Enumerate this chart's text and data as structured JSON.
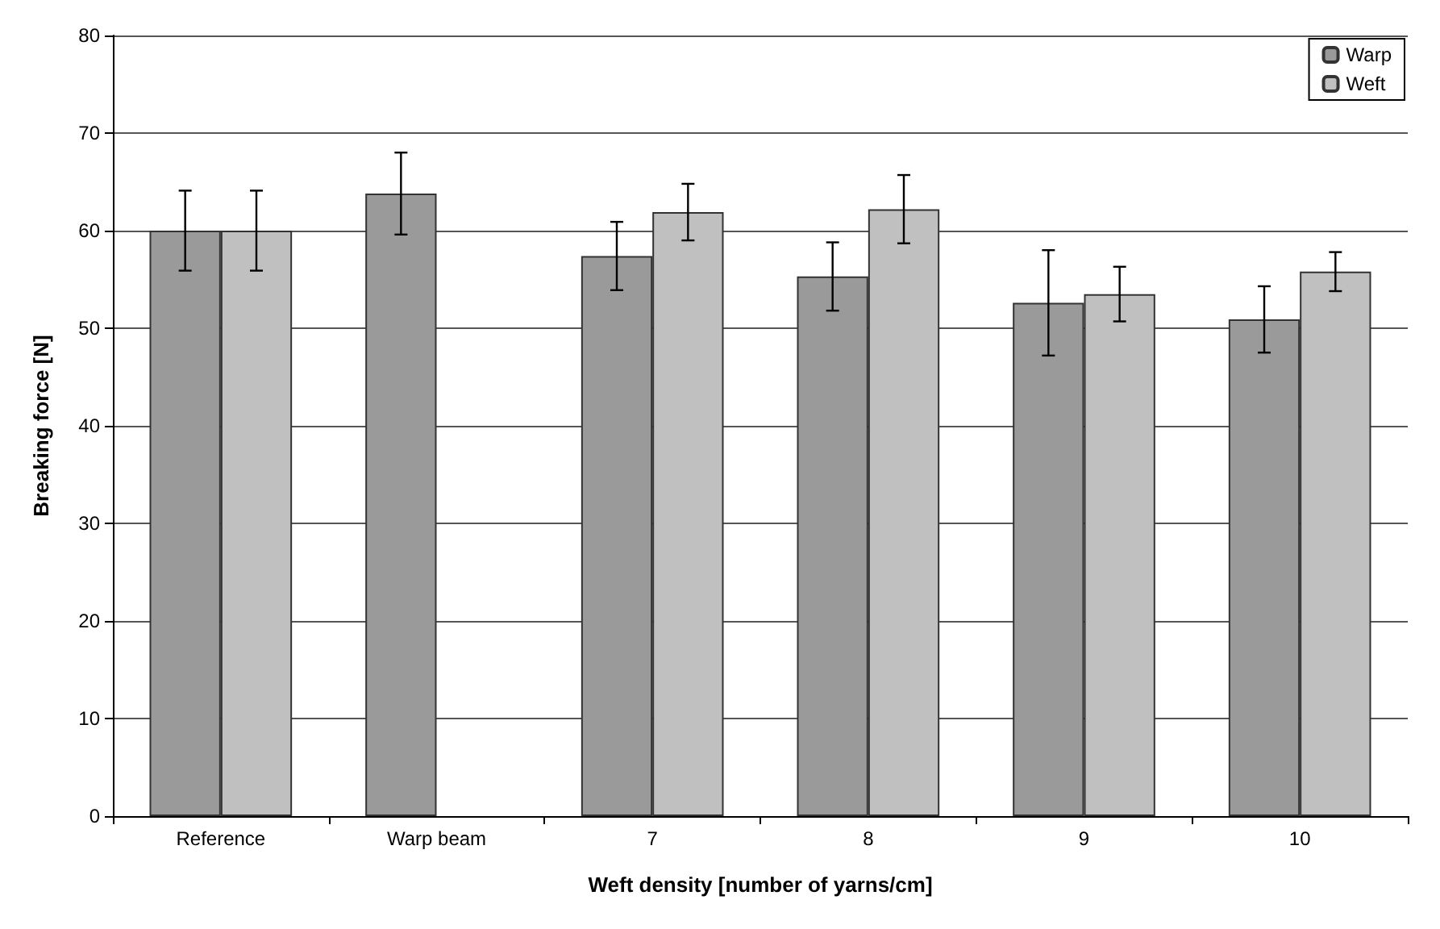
{
  "chart_data": {
    "type": "bar",
    "xlabel": "Weft density [number of yarns/cm]",
    "ylabel": "Breaking force [N]",
    "categories": [
      "Reference",
      "Warp beam",
      "7",
      "8",
      "9",
      "10"
    ],
    "series": [
      {
        "name": "Warp",
        "color": "#9a9a9a",
        "values": [
          60,
          63.8,
          57.4,
          55.3,
          52.6,
          50.9
        ],
        "errors": [
          4.1,
          4.2,
          3.5,
          3.5,
          5.4,
          3.4
        ]
      },
      {
        "name": "Weft",
        "color": "#c0c0c0",
        "values": [
          60,
          null,
          61.9,
          62.2,
          53.5,
          55.8
        ],
        "errors": [
          4.1,
          null,
          2.9,
          3.5,
          2.8,
          2
        ]
      }
    ],
    "ylim": [
      0,
      80
    ],
    "yticks": [
      0,
      10,
      20,
      30,
      40,
      50,
      60,
      70,
      80
    ],
    "grid": "y",
    "legend": "top right"
  }
}
